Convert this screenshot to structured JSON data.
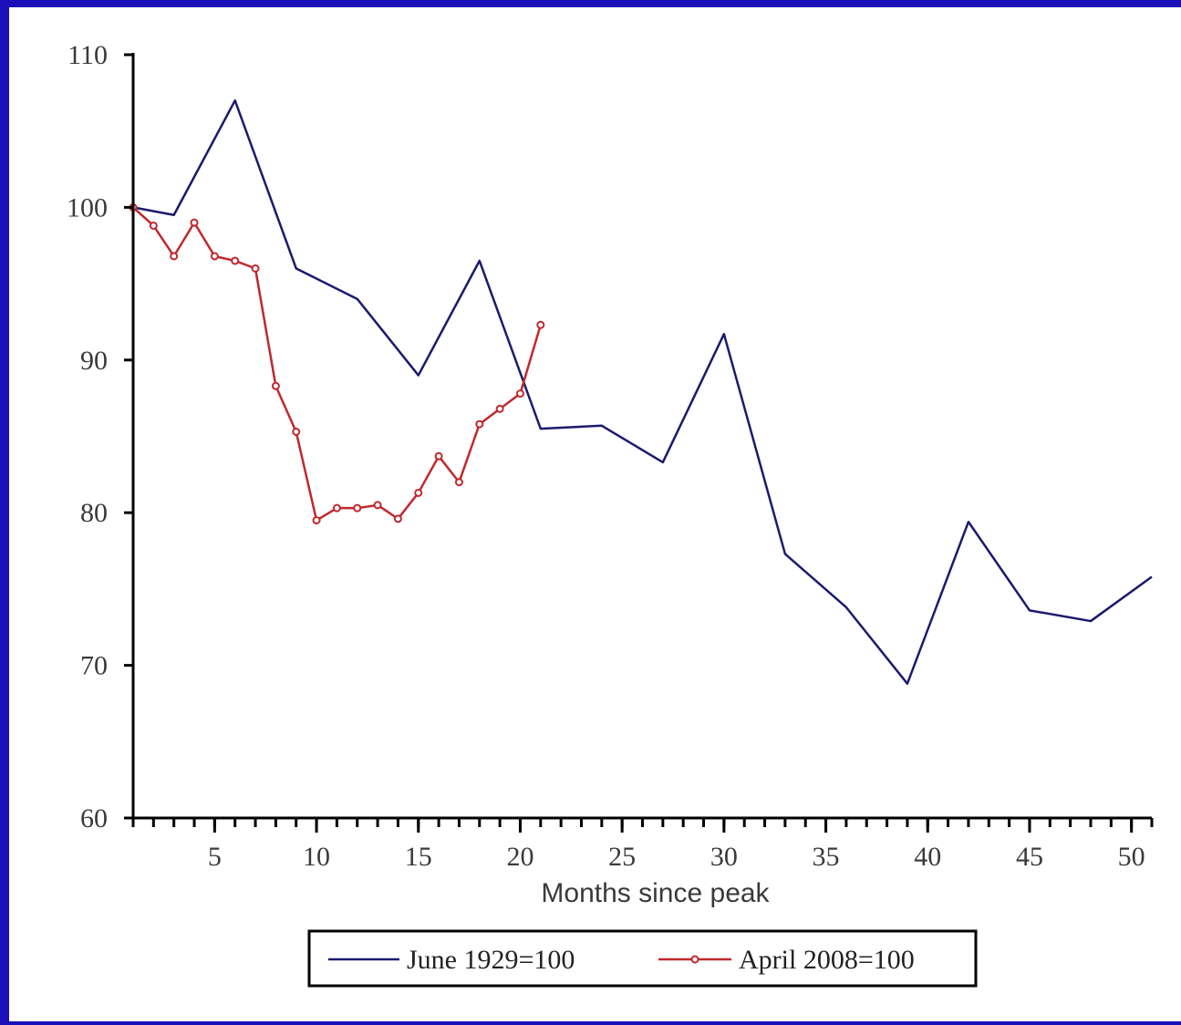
{
  "chart_data": {
    "type": "line",
    "title": "",
    "xlabel": "Months since peak",
    "ylabel": "",
    "xlim": [
      1,
      51
    ],
    "ylim": [
      60,
      110
    ],
    "grid": false,
    "legend_placement": "bottom-center",
    "x_ticks": [
      5,
      10,
      15,
      20,
      25,
      30,
      35,
      40,
      45,
      50
    ],
    "y_ticks": [
      60,
      70,
      80,
      90,
      100,
      110
    ],
    "series": [
      {
        "name": "June 1929=100",
        "color": "#1a1a6e",
        "markers": false,
        "points": [
          [
            1,
            100
          ],
          [
            3,
            99.5
          ],
          [
            6,
            107
          ],
          [
            9,
            96
          ],
          [
            12,
            94
          ],
          [
            15,
            89
          ],
          [
            18,
            96.5
          ],
          [
            21,
            85.5
          ],
          [
            24,
            85.7
          ],
          [
            27,
            83.3
          ],
          [
            30,
            91.7
          ],
          [
            33,
            77.3
          ],
          [
            36,
            73.8
          ],
          [
            39,
            68.8
          ],
          [
            42,
            79.4
          ],
          [
            45,
            73.6
          ],
          [
            48,
            72.9
          ],
          [
            51,
            75.8
          ]
        ]
      },
      {
        "name": "April 2008=100",
        "color": "#c0282d",
        "markers": true,
        "points": [
          [
            1,
            100
          ],
          [
            2,
            98.8
          ],
          [
            3,
            96.8
          ],
          [
            4,
            99
          ],
          [
            5,
            96.8
          ],
          [
            6,
            96.5
          ],
          [
            7,
            96
          ],
          [
            8,
            88.3
          ],
          [
            9,
            85.3
          ],
          [
            10,
            79.5
          ],
          [
            11,
            80.3
          ],
          [
            12,
            80.3
          ],
          [
            13,
            80.5
          ],
          [
            14,
            79.6
          ],
          [
            15,
            81.3
          ],
          [
            16,
            83.7
          ],
          [
            17,
            82
          ],
          [
            18,
            85.8
          ],
          [
            19,
            86.8
          ],
          [
            20,
            87.8
          ],
          [
            21,
            92.3
          ]
        ]
      }
    ]
  }
}
